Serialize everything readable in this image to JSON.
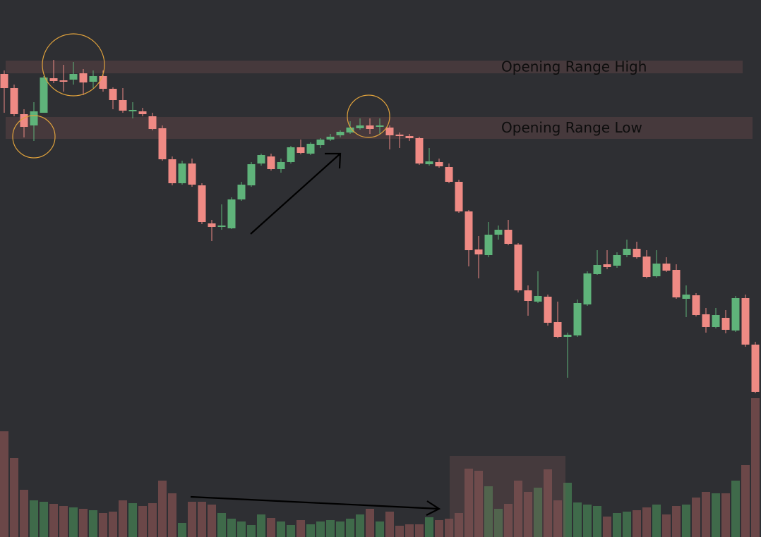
{
  "chart_data": {
    "type": "candlestick",
    "up_color": "#5fb37a",
    "down_color": "#ef8a84",
    "volume_up_color": "#3f6a4a",
    "volume_down_color": "#6b4748",
    "ylim": [
      0,
      762
    ],
    "y2lim": [
      0,
      762
    ],
    "open": [
      657,
      637,
      600,
      584,
      602,
      651,
      648,
      649,
      658,
      646,
      654,
      636,
      620,
      604,
      604,
      597,
      580,
      536,
      502,
      530,
      499,
      445,
      440,
      438,
      479,
      499,
      530,
      540,
      522,
      532,
      553,
      544,
      556,
      564,
      570,
      574,
      580,
      584,
      582,
      581,
      571,
      569,
      566,
      529,
      532,
      525,
      504,
      462,
      408,
      400,
      429,
      436,
      415,
      350,
      334,
      341,
      305,
      284,
      286,
      330,
      373,
      387,
      385,
      400,
      409,
      398,
      370,
      388,
      379,
      338,
      343,
      316,
      298,
      311,
      293,
      339,
      273
    ],
    "high": [
      662,
      642,
      607,
      617,
      654,
      677,
      670,
      674,
      664,
      662,
      662,
      638,
      637,
      617,
      609,
      602,
      584,
      540,
      534,
      537,
      502,
      450,
      472,
      482,
      504,
      532,
      544,
      544,
      537,
      555,
      564,
      560,
      566,
      572,
      577,
      590,
      594,
      594,
      594,
      584,
      574,
      572,
      568,
      552,
      537,
      530,
      507,
      464,
      427,
      447,
      442,
      450,
      417,
      357,
      377,
      344,
      334,
      290,
      337,
      377,
      407,
      407,
      404,
      422,
      419,
      407,
      407,
      397,
      387,
      357,
      346,
      325,
      325,
      322,
      342,
      344,
      277
    ],
    "low": [
      602,
      597,
      567,
      562,
      602,
      644,
      632,
      642,
      627,
      637,
      632,
      607,
      602,
      594,
      597,
      577,
      534,
      499,
      500,
      497,
      444,
      420,
      436,
      437,
      477,
      497,
      527,
      520,
      517,
      530,
      543,
      542,
      552,
      562,
      567,
      572,
      578,
      572,
      572,
      550,
      552,
      562,
      528,
      527,
      524,
      502,
      460,
      384,
      367,
      397,
      422,
      414,
      347,
      314,
      332,
      300,
      282,
      226,
      284,
      328,
      372,
      380,
      382,
      397,
      395,
      367,
      368,
      376,
      338,
      312,
      313,
      290,
      296,
      289,
      291,
      270,
      204
    ],
    "close": [
      637,
      600,
      582,
      604,
      652,
      647,
      646,
      657,
      645,
      654,
      636,
      620,
      605,
      606,
      600,
      579,
      536,
      502,
      530,
      500,
      447,
      440,
      442,
      479,
      500,
      529,
      542,
      522,
      532,
      553,
      545,
      558,
      564,
      568,
      575,
      581,
      584,
      579,
      584,
      570,
      569,
      566,
      530,
      533,
      526,
      504,
      462,
      407,
      401,
      429,
      436,
      416,
      350,
      335,
      342,
      304,
      284,
      287,
      332,
      374,
      386,
      383,
      400,
      409,
      397,
      369,
      388,
      378,
      340,
      344,
      315,
      298,
      315,
      294,
      339,
      273,
      206
    ],
    "volume": [
      150,
      112,
      67,
      52,
      50,
      47,
      44,
      42,
      40,
      38,
      34,
      36,
      52,
      48,
      44,
      48,
      80,
      62,
      20,
      50,
      50,
      46,
      34,
      26,
      22,
      17,
      32,
      27,
      22,
      17,
      24,
      18,
      22,
      24,
      22,
      26,
      32,
      40,
      22,
      36,
      16,
      18,
      18,
      28,
      24,
      26,
      34,
      97,
      94,
      72,
      40,
      47,
      80,
      64,
      70,
      96,
      52,
      77,
      49,
      46,
      44,
      29,
      34,
      36,
      38,
      42,
      46,
      32,
      44,
      46,
      56,
      64,
      62,
      62,
      80,
      102,
      197
    ],
    "zones": [
      {
        "label": "Opening Range High",
        "high": 676,
        "low": 658
      },
      {
        "label": "Opening Range Low",
        "high": 596,
        "low": 565
      }
    ]
  }
}
